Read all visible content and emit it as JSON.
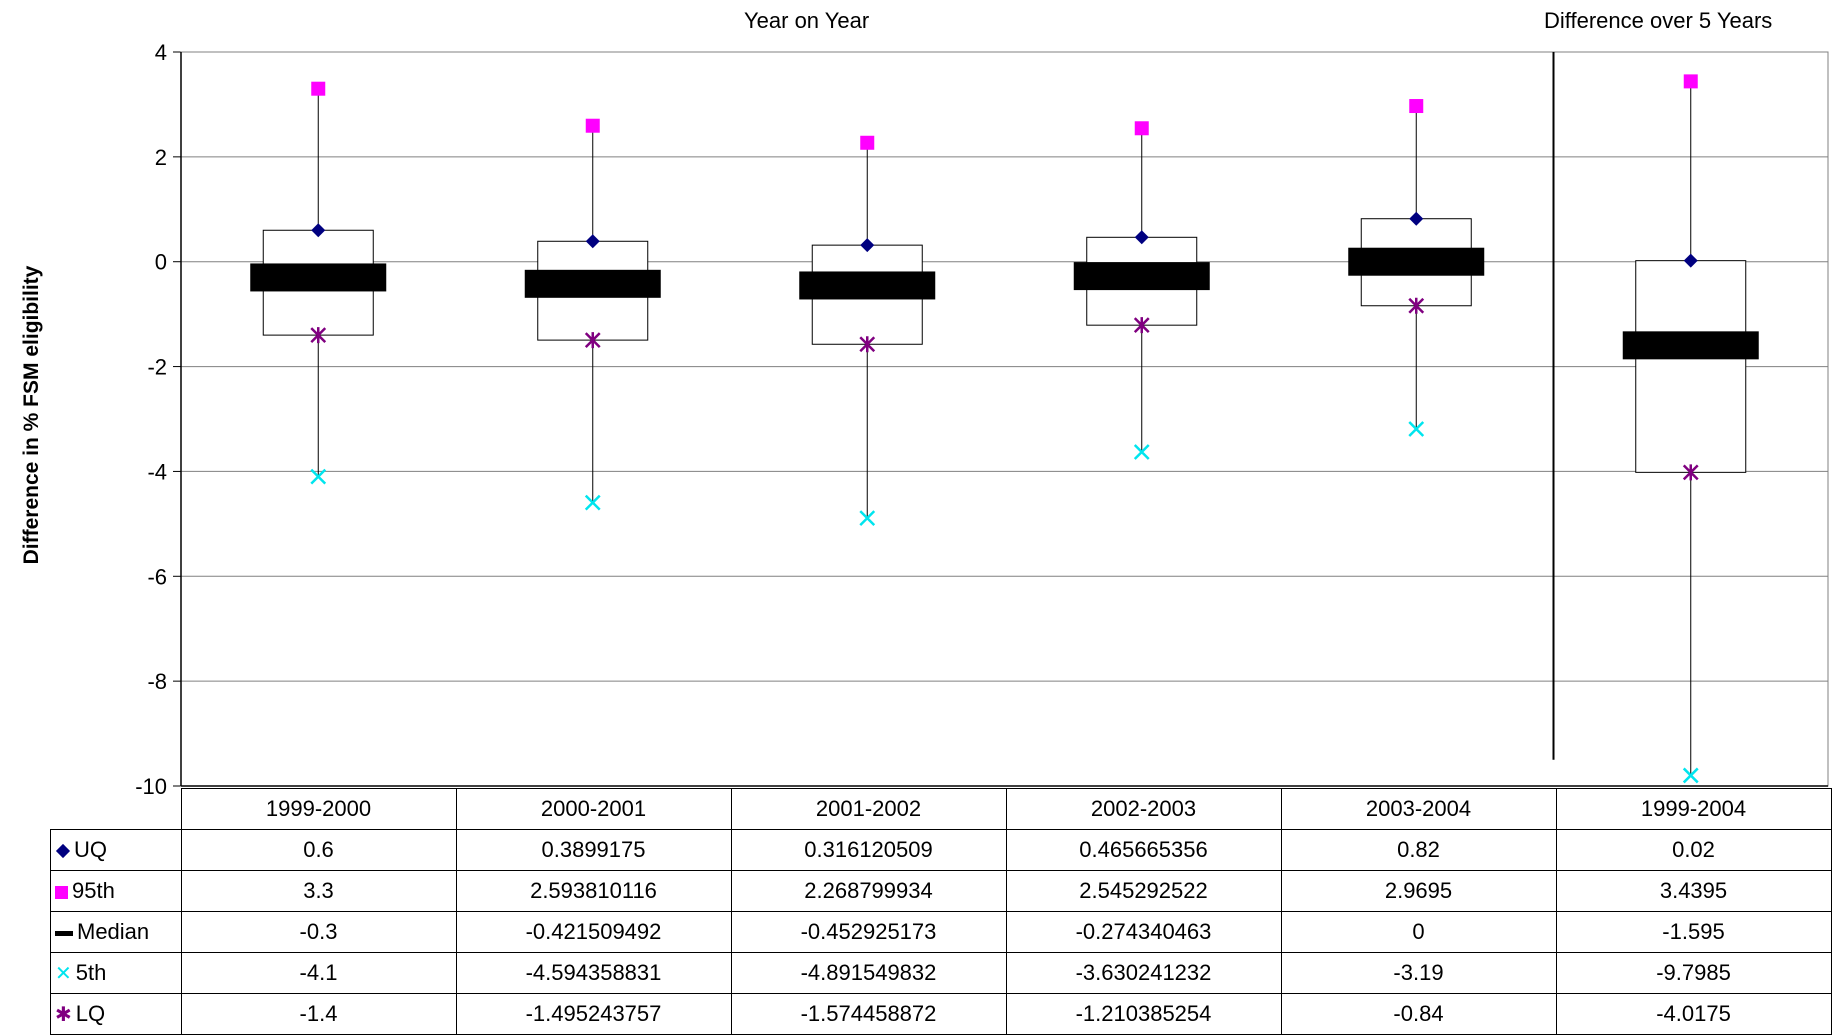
{
  "chart_data": {
    "type": "box",
    "section_titles": [
      "Year on Year",
      "Difference over 5 Years"
    ],
    "ylabel": "Difference in % FSM eligibility",
    "ylim": [
      -10,
      4
    ],
    "yticks": [
      4,
      2,
      0,
      -2,
      -4,
      -6,
      -8,
      -10
    ],
    "ytick_labels": [
      "4",
      "2",
      "0",
      "-2",
      "-4",
      "-6",
      "-8",
      "-10"
    ],
    "grid": true,
    "categories": [
      "1999-2000",
      "2000-2001",
      "2001-2002",
      "2002-2003",
      "2003-2004",
      "1999-2004"
    ],
    "series": [
      {
        "name": "UQ",
        "marker": "diamond",
        "color": "#000080",
        "values": [
          0.6,
          0.3899175,
          0.316120509,
          0.465665356,
          0.82,
          0.02
        ],
        "labels": [
          "0.6",
          "0.3899175",
          "0.316120509",
          "0.465665356",
          "0.82",
          "0.02"
        ]
      },
      {
        "name": "95th",
        "marker": "square",
        "color": "#ff00ff",
        "values": [
          3.3,
          2.593810116,
          2.268799934,
          2.545292522,
          2.9695,
          3.4395
        ],
        "labels": [
          "3.3",
          "2.593810116",
          "2.268799934",
          "2.545292522",
          "2.9695",
          "3.4395"
        ]
      },
      {
        "name": "Median",
        "marker": "bar",
        "color": "#000000",
        "values": [
          -0.3,
          -0.421509492,
          -0.452925173,
          -0.274340463,
          0,
          -1.595
        ],
        "labels": [
          "-0.3",
          "-0.421509492",
          "-0.452925173",
          "-0.274340463",
          "0",
          "-1.595"
        ]
      },
      {
        "name": "5th",
        "marker": "x",
        "color": "#00e5ee",
        "values": [
          -4.1,
          -4.594358831,
          -4.891549832,
          -3.630241232,
          -3.19,
          -9.7985
        ],
        "labels": [
          "-4.1",
          "-4.594358831",
          "-4.891549832",
          "-3.630241232",
          "-3.19",
          "-9.7985"
        ]
      },
      {
        "name": "LQ",
        "marker": "star",
        "color": "#800080",
        "values": [
          -1.4,
          -1.495243757,
          -1.574458872,
          -1.210385254,
          -0.84,
          -4.0175
        ],
        "labels": [
          "-1.4",
          "-1.495243757",
          "-1.574458872",
          "-1.210385254",
          "-0.84",
          "-4.0175"
        ]
      }
    ]
  }
}
